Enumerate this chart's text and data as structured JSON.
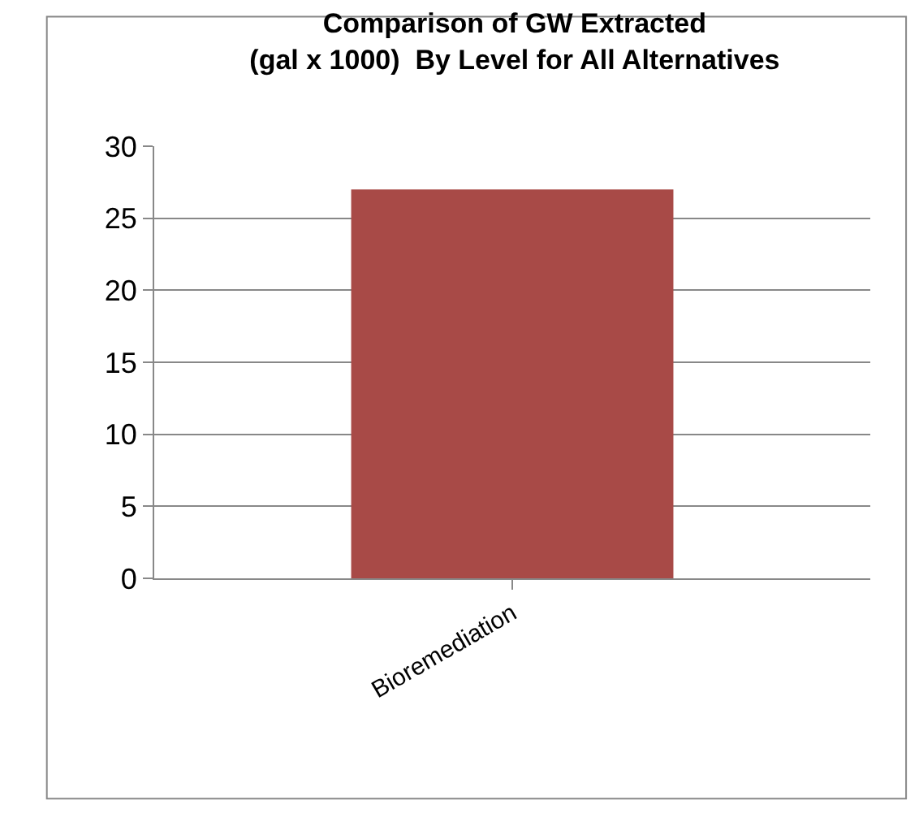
{
  "chart_data": {
    "type": "bar",
    "title": "Comparison of GW Extracted\n(gal x 1000)  By Level for All Alternatives",
    "categories": [
      "Bioremediation"
    ],
    "values": [
      27
    ],
    "color": "#a84a47",
    "ylim": [
      0,
      30
    ],
    "yticks": [
      0,
      5,
      10,
      15,
      20,
      25,
      30
    ],
    "grid": "y",
    "legend": false
  }
}
